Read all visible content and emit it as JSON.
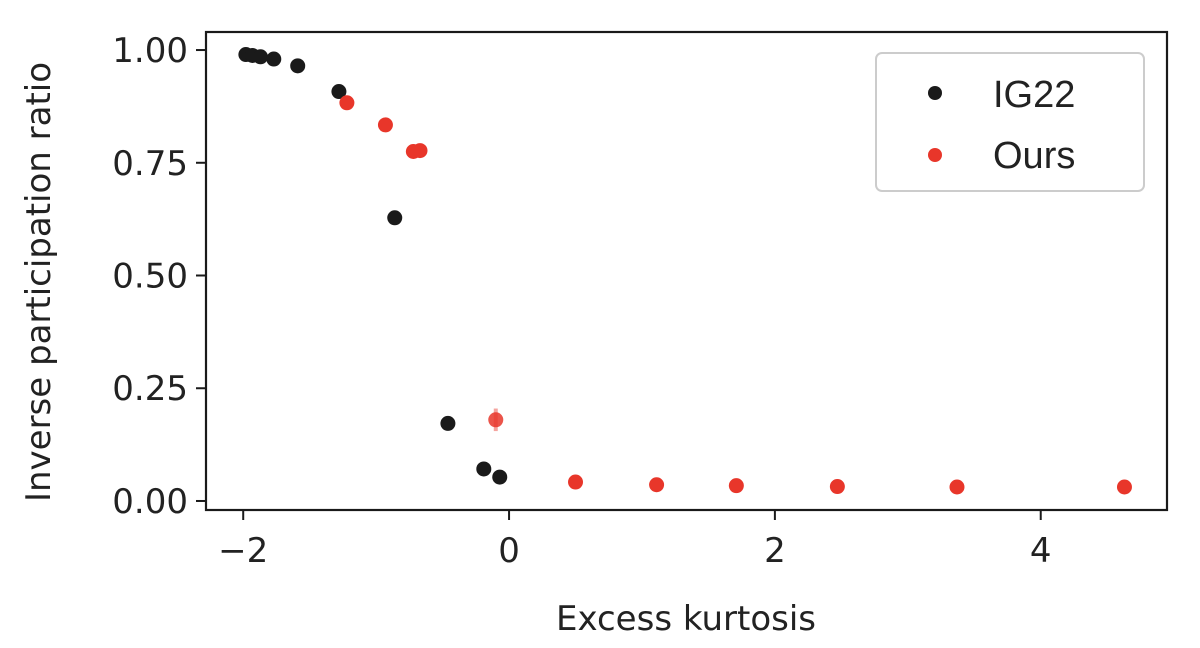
{
  "chart_data": {
    "type": "scatter",
    "title": "",
    "xlabel": "Excess kurtosis",
    "ylabel": "Inverse participation ratio",
    "xlim": [
      -2.28,
      4.95
    ],
    "ylim": [
      -0.02,
      1.04
    ],
    "xticks": [
      -2,
      0,
      2,
      4
    ],
    "xtick_labels": [
      "−2",
      "0",
      "2",
      "4"
    ],
    "yticks": [
      0.0,
      0.25,
      0.5,
      0.75,
      1.0
    ],
    "ytick_labels": [
      "0.00",
      "0.25",
      "0.50",
      "0.75",
      "1.00"
    ],
    "grid": false,
    "legend_position": "top-right",
    "series": [
      {
        "name": "IG22",
        "color": "#1a1a1a",
        "points": [
          {
            "x": -1.98,
            "y": 0.99
          },
          {
            "x": -1.93,
            "y": 0.988
          },
          {
            "x": -1.87,
            "y": 0.985
          },
          {
            "x": -1.77,
            "y": 0.98
          },
          {
            "x": -1.59,
            "y": 0.965
          },
          {
            "x": -1.28,
            "y": 0.908
          },
          {
            "x": -0.86,
            "y": 0.628
          },
          {
            "x": -0.46,
            "y": 0.172
          },
          {
            "x": -0.19,
            "y": 0.071
          },
          {
            "x": -0.07,
            "y": 0.053
          }
        ]
      },
      {
        "name": "Ours",
        "color": "#e8362a",
        "points": [
          {
            "x": -1.22,
            "y": 0.883
          },
          {
            "x": -0.93,
            "y": 0.834
          },
          {
            "x": -0.72,
            "y": 0.775
          },
          {
            "x": -0.67,
            "y": 0.777
          },
          {
            "x": -0.1,
            "y": 0.18,
            "err": 0.025
          },
          {
            "x": 0.5,
            "y": 0.042
          },
          {
            "x": 1.11,
            "y": 0.036
          },
          {
            "x": 1.71,
            "y": 0.034
          },
          {
            "x": 2.47,
            "y": 0.032
          },
          {
            "x": 3.37,
            "y": 0.031
          },
          {
            "x": 4.63,
            "y": 0.031
          }
        ]
      }
    ]
  }
}
